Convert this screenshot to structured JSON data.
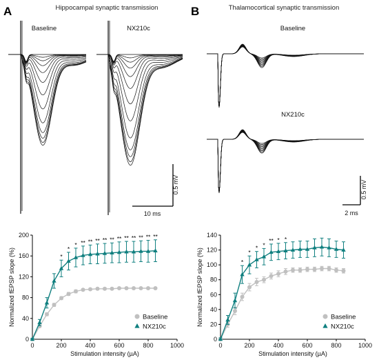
{
  "panel_a": {
    "letter": "A",
    "title": "Hippocampal synaptic transmission",
    "trace_labels": [
      "Baseline",
      "NX210c"
    ],
    "scale_bar": {
      "y_label": "0.5 mV",
      "x_label": "10 ms"
    }
  },
  "panel_b": {
    "letter": "B",
    "title": "Thalamocortical synaptic transmission",
    "trace_labels": [
      "Baseline",
      "NX210c"
    ],
    "scale_bar": {
      "y_label": "0.5 mV",
      "x_label": "2 ms"
    }
  },
  "colors": {
    "baseline": "#c0c0c0",
    "nx210c": "#0f7f7f",
    "traces": "#111111"
  },
  "chart_data": [
    {
      "type": "line",
      "panel": "A",
      "xlabel": "Stimulation intensity (µA)",
      "ylabel": "Normalized fEPSP slope (%)",
      "xlim": [
        0,
        1000
      ],
      "ylim": [
        0,
        200
      ],
      "xticks": [
        0,
        200,
        400,
        600,
        800,
        1000
      ],
      "yticks": [
        0,
        40,
        80,
        120,
        160,
        200
      ],
      "legend_position": "bottom-right",
      "grid": false,
      "series": [
        {
          "name": "Baseline",
          "x": [
            0,
            50,
            100,
            150,
            200,
            250,
            300,
            350,
            400,
            450,
            500,
            550,
            600,
            650,
            700,
            750,
            800,
            850
          ],
          "y": [
            0,
            25,
            48,
            66,
            79,
            87,
            92,
            95,
            96,
            97,
            97,
            97,
            98,
            98,
            98,
            98,
            98,
            98
          ],
          "err": [
            1,
            2,
            3,
            3,
            3,
            3,
            3,
            2,
            2,
            2,
            2,
            2,
            2,
            2,
            2,
            2,
            2,
            2
          ]
        },
        {
          "name": "NX210c",
          "x": [
            0,
            50,
            100,
            150,
            200,
            250,
            300,
            350,
            400,
            450,
            500,
            550,
            600,
            650,
            700,
            750,
            800,
            850
          ],
          "y": [
            0,
            32,
            70,
            112,
            136,
            150,
            157,
            161,
            163,
            164,
            165,
            166,
            167,
            168,
            168,
            169,
            169,
            170
          ],
          "err": [
            2,
            6,
            10,
            14,
            16,
            17,
            18,
            18,
            18,
            19,
            19,
            19,
            20,
            20,
            20,
            20,
            21,
            21
          ]
        }
      ],
      "significance": [
        {
          "x": 200,
          "label": "*"
        },
        {
          "x": 250,
          "label": "*"
        },
        {
          "x": 300,
          "label": "*"
        },
        {
          "x": 350,
          "label": "**"
        },
        {
          "x": 400,
          "label": "**"
        },
        {
          "x": 450,
          "label": "**"
        },
        {
          "x": 500,
          "label": "**"
        },
        {
          "x": 550,
          "label": "**"
        },
        {
          "x": 600,
          "label": "**"
        },
        {
          "x": 650,
          "label": "**"
        },
        {
          "x": 700,
          "label": "**"
        },
        {
          "x": 750,
          "label": "**"
        },
        {
          "x": 800,
          "label": "**"
        },
        {
          "x": 850,
          "label": "**"
        }
      ]
    },
    {
      "type": "line",
      "panel": "B",
      "xlabel": "Stimulation intensity (µA)",
      "ylabel": "Normalized fEPSP slope (%)",
      "xlim": [
        0,
        1000
      ],
      "ylim": [
        0,
        140
      ],
      "xticks": [
        0,
        200,
        400,
        600,
        800,
        1000
      ],
      "yticks": [
        0,
        20,
        40,
        60,
        80,
        100,
        120,
        140
      ],
      "legend_position": "bottom-right",
      "grid": false,
      "series": [
        {
          "name": "Baseline",
          "x": [
            0,
            50,
            100,
            150,
            200,
            250,
            300,
            350,
            400,
            450,
            500,
            550,
            600,
            650,
            700,
            750,
            800,
            850
          ],
          "y": [
            0,
            20,
            38,
            57,
            70,
            77,
            80,
            85,
            88,
            91,
            93,
            93,
            94,
            94,
            95,
            95,
            93,
            92
          ],
          "err": [
            1,
            4,
            5,
            5,
            5,
            5,
            4,
            4,
            4,
            4,
            3,
            3,
            3,
            3,
            3,
            3,
            3,
            3
          ]
        },
        {
          "name": "NX210c",
          "x": [
            0,
            50,
            100,
            150,
            200,
            250,
            300,
            350,
            400,
            450,
            500,
            550,
            600,
            650,
            700,
            750,
            800,
            850
          ],
          "y": [
            0,
            26,
            52,
            87,
            100,
            107,
            111,
            117,
            118,
            119,
            120,
            121,
            121,
            123,
            124,
            123,
            121,
            120
          ],
          "err": [
            2,
            6,
            10,
            12,
            12,
            11,
            11,
            11,
            11,
            11,
            11,
            11,
            11,
            12,
            12,
            12,
            11,
            11
          ]
        }
      ],
      "significance": [
        {
          "x": 150,
          "label": "*"
        },
        {
          "x": 200,
          "label": "*"
        },
        {
          "x": 250,
          "label": "*"
        },
        {
          "x": 300,
          "label": "*"
        },
        {
          "x": 350,
          "label": "**"
        },
        {
          "x": 400,
          "label": "*"
        },
        {
          "x": 450,
          "label": "*"
        }
      ]
    }
  ]
}
